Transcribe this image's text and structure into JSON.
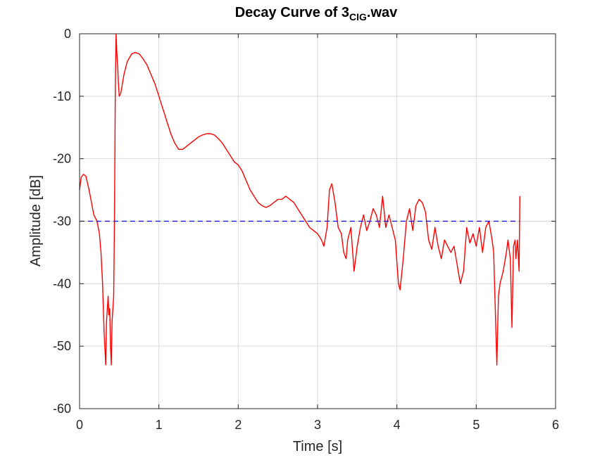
{
  "chart_data": {
    "type": "line",
    "title": {
      "prefix": "Decay Curve of 3",
      "subscript": "CIG",
      "suffix": ".wav"
    },
    "xlabel": "Time [s]",
    "ylabel": "Amplitude [dB]",
    "xlim": [
      0,
      6
    ],
    "ylim": [
      -60,
      0
    ],
    "xticks": [
      0,
      1,
      2,
      3,
      4,
      5,
      6
    ],
    "yticks": [
      0,
      -10,
      -20,
      -30,
      -40,
      -50,
      -60
    ],
    "grid": true,
    "series": [
      {
        "color": "#ff0000",
        "style": "solid",
        "x": [
          0,
          0.02,
          0.05,
          0.08,
          0.12,
          0.15,
          0.18,
          0.22,
          0.25,
          0.27,
          0.29,
          0.31,
          0.33,
          0.34,
          0.36,
          0.37,
          0.38,
          0.39,
          0.4,
          0.41,
          0.42,
          0.43,
          0.44,
          0.45,
          0.46,
          0.47,
          0.48,
          0.49,
          0.5,
          0.52,
          0.54,
          0.56,
          0.58,
          0.6,
          0.63,
          0.66,
          0.7,
          0.75,
          0.8,
          0.85,
          0.9,
          0.95,
          1.0,
          1.05,
          1.1,
          1.15,
          1.2,
          1.25,
          1.3,
          1.35,
          1.4,
          1.45,
          1.5,
          1.55,
          1.6,
          1.65,
          1.7,
          1.75,
          1.8,
          1.85,
          1.9,
          1.95,
          2.0,
          2.05,
          2.1,
          2.15,
          2.2,
          2.25,
          2.3,
          2.35,
          2.4,
          2.45,
          2.5,
          2.55,
          2.6,
          2.65,
          2.7,
          2.75,
          2.8,
          2.85,
          2.9,
          2.95,
          3.0,
          3.05,
          3.08,
          3.12,
          3.15,
          3.18,
          3.22,
          3.26,
          3.3,
          3.33,
          3.36,
          3.38,
          3.42,
          3.46,
          3.5,
          3.54,
          3.58,
          3.62,
          3.66,
          3.7,
          3.74,
          3.78,
          3.82,
          3.86,
          3.9,
          3.94,
          3.98,
          4.02,
          4.04,
          4.08,
          4.12,
          4.16,
          4.2,
          4.24,
          4.28,
          4.32,
          4.36,
          4.4,
          4.44,
          4.48,
          4.52,
          4.56,
          4.6,
          4.64,
          4.68,
          4.72,
          4.76,
          4.8,
          4.84,
          4.88,
          4.92,
          4.96,
          5.0,
          5.04,
          5.08,
          5.12,
          5.16,
          5.2,
          5.22,
          5.24,
          5.26,
          5.28,
          5.3,
          5.34,
          5.38,
          5.4,
          5.43,
          5.45,
          5.47,
          5.49,
          5.5,
          5.52,
          5.54,
          5.55
        ],
        "y": [
          -25,
          -23,
          -22.5,
          -22.8,
          -25,
          -27,
          -29,
          -30,
          -32,
          -35,
          -40,
          -48,
          -53,
          -46,
          -42,
          -45,
          -44,
          -50,
          -53,
          -46,
          -44,
          -42,
          -30,
          -10,
          0,
          -3,
          -5,
          -8,
          -10,
          -9.5,
          -8,
          -6.5,
          -5.5,
          -4.5,
          -3.8,
          -3.2,
          -3,
          -3.2,
          -4,
          -5,
          -6.5,
          -8,
          -10,
          -12,
          -14,
          -16,
          -17.5,
          -18.5,
          -18.5,
          -18,
          -17.5,
          -17,
          -16.5,
          -16.2,
          -16,
          -16,
          -16.2,
          -16.8,
          -17.5,
          -18.5,
          -19.5,
          -20.5,
          -21,
          -22,
          -23.5,
          -25,
          -26,
          -27,
          -27.5,
          -27.8,
          -27.5,
          -27,
          -26.5,
          -26.5,
          -26,
          -26.5,
          -27,
          -28,
          -29,
          -30,
          -31,
          -31.5,
          -32,
          -33,
          -34,
          -31,
          -25,
          -24,
          -27,
          -31,
          -32,
          -35,
          -36,
          -33,
          -31,
          -38,
          -34,
          -31,
          -29,
          -31.5,
          -30,
          -28,
          -29,
          -31,
          -26,
          -31,
          -29,
          -31,
          -33,
          -40,
          -41,
          -36,
          -30,
          -28,
          -31.5,
          -27.5,
          -26.5,
          -27,
          -28.5,
          -33,
          -34.5,
          -31,
          -34,
          -36,
          -33,
          -34,
          -35,
          -34,
          -37,
          -40,
          -38,
          -31,
          -33.5,
          -32,
          -34,
          -31,
          -35,
          -31,
          -30,
          -33,
          -35,
          -44,
          -53,
          -42,
          -40,
          -38,
          -35,
          -33,
          -36,
          -47,
          -34,
          -33,
          -36,
          -33,
          -38,
          -26
        ]
      },
      {
        "color": "#0000ff",
        "style": "dashed",
        "x": [
          0,
          5.55
        ],
        "y": [
          -30,
          -30
        ]
      }
    ]
  }
}
